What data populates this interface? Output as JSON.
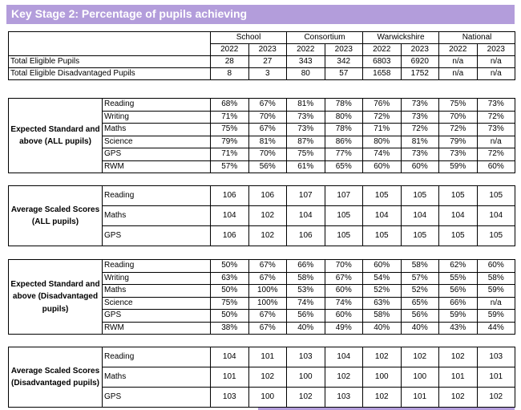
{
  "title": "Key Stage 2: Percentage of pupils achieving",
  "header": {
    "groups": [
      "School",
      "Consortium",
      "Warwickshire",
      "National"
    ],
    "years": [
      "2022",
      "2023",
      "2022",
      "2023",
      "2022",
      "2023",
      "2022",
      "2023"
    ]
  },
  "eligible": [
    {
      "label": "Total Eligible Pupils",
      "values": [
        "28",
        "27",
        "343",
        "342",
        "6803",
        "6920",
        "n/a",
        "n/a"
      ]
    },
    {
      "label": "Total Eligible Disadvantaged Pupils",
      "values": [
        "8",
        "3",
        "80",
        "57",
        "1658",
        "1752",
        "n/a",
        "n/a"
      ]
    }
  ],
  "sections": [
    {
      "group": "Expected Standard and above (ALL pupils)",
      "rows": [
        {
          "label": "Reading",
          "values": [
            "68%",
            "67%",
            "81%",
            "78%",
            "76%",
            "73%",
            "75%",
            "73%"
          ]
        },
        {
          "label": "Writing",
          "values": [
            "71%",
            "70%",
            "73%",
            "80%",
            "72%",
            "73%",
            "70%",
            "72%"
          ]
        },
        {
          "label": "Maths",
          "values": [
            "75%",
            "67%",
            "73%",
            "78%",
            "71%",
            "72%",
            "72%",
            "73%"
          ]
        },
        {
          "label": "Science",
          "values": [
            "79%",
            "81%",
            "87%",
            "86%",
            "80%",
            "81%",
            "79%",
            "n/a"
          ]
        },
        {
          "label": "GPS",
          "values": [
            "71%",
            "70%",
            "75%",
            "77%",
            "74%",
            "73%",
            "73%",
            "72%"
          ]
        },
        {
          "label": "RWM",
          "values": [
            "57%",
            "56%",
            "61%",
            "65%",
            "60%",
            "60%",
            "59%",
            "60%"
          ]
        }
      ]
    },
    {
      "group": "Average Scaled Scores (ALL pupils)",
      "rows": [
        {
          "label": "Reading",
          "values": [
            "106",
            "106",
            "107",
            "107",
            "105",
            "105",
            "105",
            "105"
          ]
        },
        {
          "label": "Maths",
          "values": [
            "104",
            "102",
            "104",
            "105",
            "104",
            "104",
            "104",
            "104"
          ]
        },
        {
          "label": "GPS",
          "values": [
            "106",
            "102",
            "106",
            "105",
            "105",
            "105",
            "105",
            "105"
          ]
        }
      ]
    },
    {
      "group": "Expected Standard and above (Disadvantaged pupils)",
      "rows": [
        {
          "label": "Reading",
          "values": [
            "50%",
            "67%",
            "66%",
            "70%",
            "60%",
            "58%",
            "62%",
            "60%"
          ]
        },
        {
          "label": "Writing",
          "values": [
            "63%",
            "67%",
            "58%",
            "67%",
            "54%",
            "57%",
            "55%",
            "58%"
          ]
        },
        {
          "label": "Maths",
          "values": [
            "50%",
            "100%",
            "53%",
            "60%",
            "52%",
            "52%",
            "56%",
            "59%"
          ]
        },
        {
          "label": "Science",
          "values": [
            "75%",
            "100%",
            "74%",
            "74%",
            "63%",
            "65%",
            "66%",
            "n/a"
          ]
        },
        {
          "label": "GPS",
          "values": [
            "50%",
            "67%",
            "56%",
            "60%",
            "58%",
            "56%",
            "59%",
            "59%"
          ]
        },
        {
          "label": "RWM",
          "values": [
            "38%",
            "67%",
            "40%",
            "49%",
            "40%",
            "40%",
            "43%",
            "44%"
          ]
        }
      ]
    },
    {
      "group": "Average Scaled Scores (Disadvantaged pupils)",
      "rows": [
        {
          "label": "Reading",
          "values": [
            "104",
            "101",
            "103",
            "104",
            "102",
            "102",
            "102",
            "103"
          ]
        },
        {
          "label": "Maths",
          "values": [
            "101",
            "102",
            "100",
            "102",
            "100",
            "100",
            "101",
            "101"
          ]
        },
        {
          "label": "GPS",
          "values": [
            "103",
            "100",
            "102",
            "103",
            "102",
            "101",
            "102",
            "102"
          ]
        }
      ]
    }
  ],
  "colors": {
    "banner": "#b39ddb",
    "banner_text": "#ffffff"
  }
}
